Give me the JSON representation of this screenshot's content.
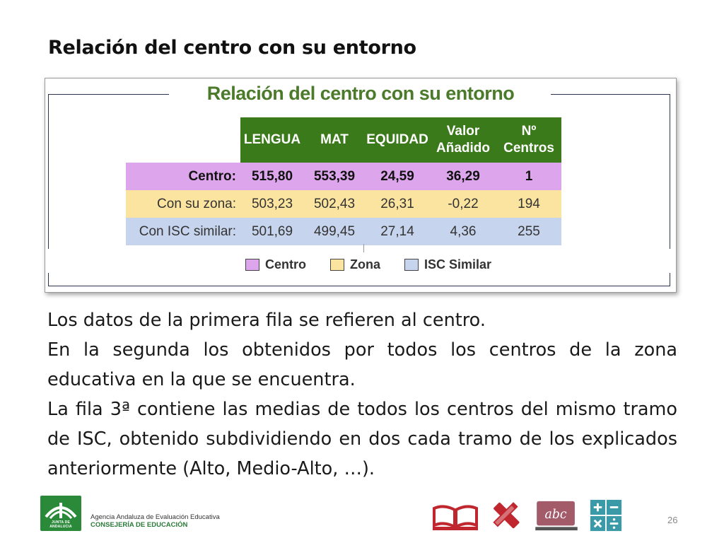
{
  "slide": {
    "title": "Relación del centro con su entorno",
    "page_number": "26"
  },
  "figure": {
    "title": "Relación del centro con su entorno",
    "columns": [
      "LENGUA",
      "MAT",
      "EQUIDAD",
      "Valor Añadido",
      "Nº Centros"
    ],
    "column_lines": {
      "valor_line1": "Valor",
      "valor_line2": "Añadido"
    },
    "rows": [
      {
        "label": "Centro:",
        "values": [
          "515,80",
          "553,39",
          "24,59",
          "36,29",
          "1"
        ],
        "color": "#dda6ec"
      },
      {
        "label": "Con su zona:",
        "values": [
          "503,23",
          "502,43",
          "26,31",
          "-0,22",
          "194"
        ],
        "color": "#fbe4a0"
      },
      {
        "label": "Con ISC similar:",
        "values": [
          "501,69",
          "499,45",
          "27,14",
          "4,36",
          "255"
        ],
        "color": "#c7d4ee"
      }
    ],
    "legend": [
      {
        "label": "Centro",
        "color": "#dda6ec"
      },
      {
        "label": "Zona",
        "color": "#fbe4a0"
      },
      {
        "label": "ISC Similar",
        "color": "#c7d4ee"
      }
    ],
    "header_color": "#3b7a1a",
    "title_color": "#4a7a2a"
  },
  "body": {
    "p1": "Los datos de la primera fila se refieren al centro.",
    "p2": "En la segunda los obtenidos por todos los centros de la zona educativa en la que se encuentra.",
    "p3": "La fila 3ª contiene las medias de todos los centros del mismo tramo de ISC, obtenido subdividiendo en dos cada tramo de los explicados anteriormente (Alto, Medio-Alto, …)."
  },
  "footer": {
    "logo_caption": "JUNTA DE ANDALUCIA",
    "agency_line1": "Agencia Andaluza de Evaluación Educativa",
    "agency_line2": "CONSEJERÍA DE EDUCACIÓN",
    "icons": [
      "book-icon",
      "ruler-pencil-icon",
      "abc-board-icon",
      "math-operations-icon"
    ]
  }
}
